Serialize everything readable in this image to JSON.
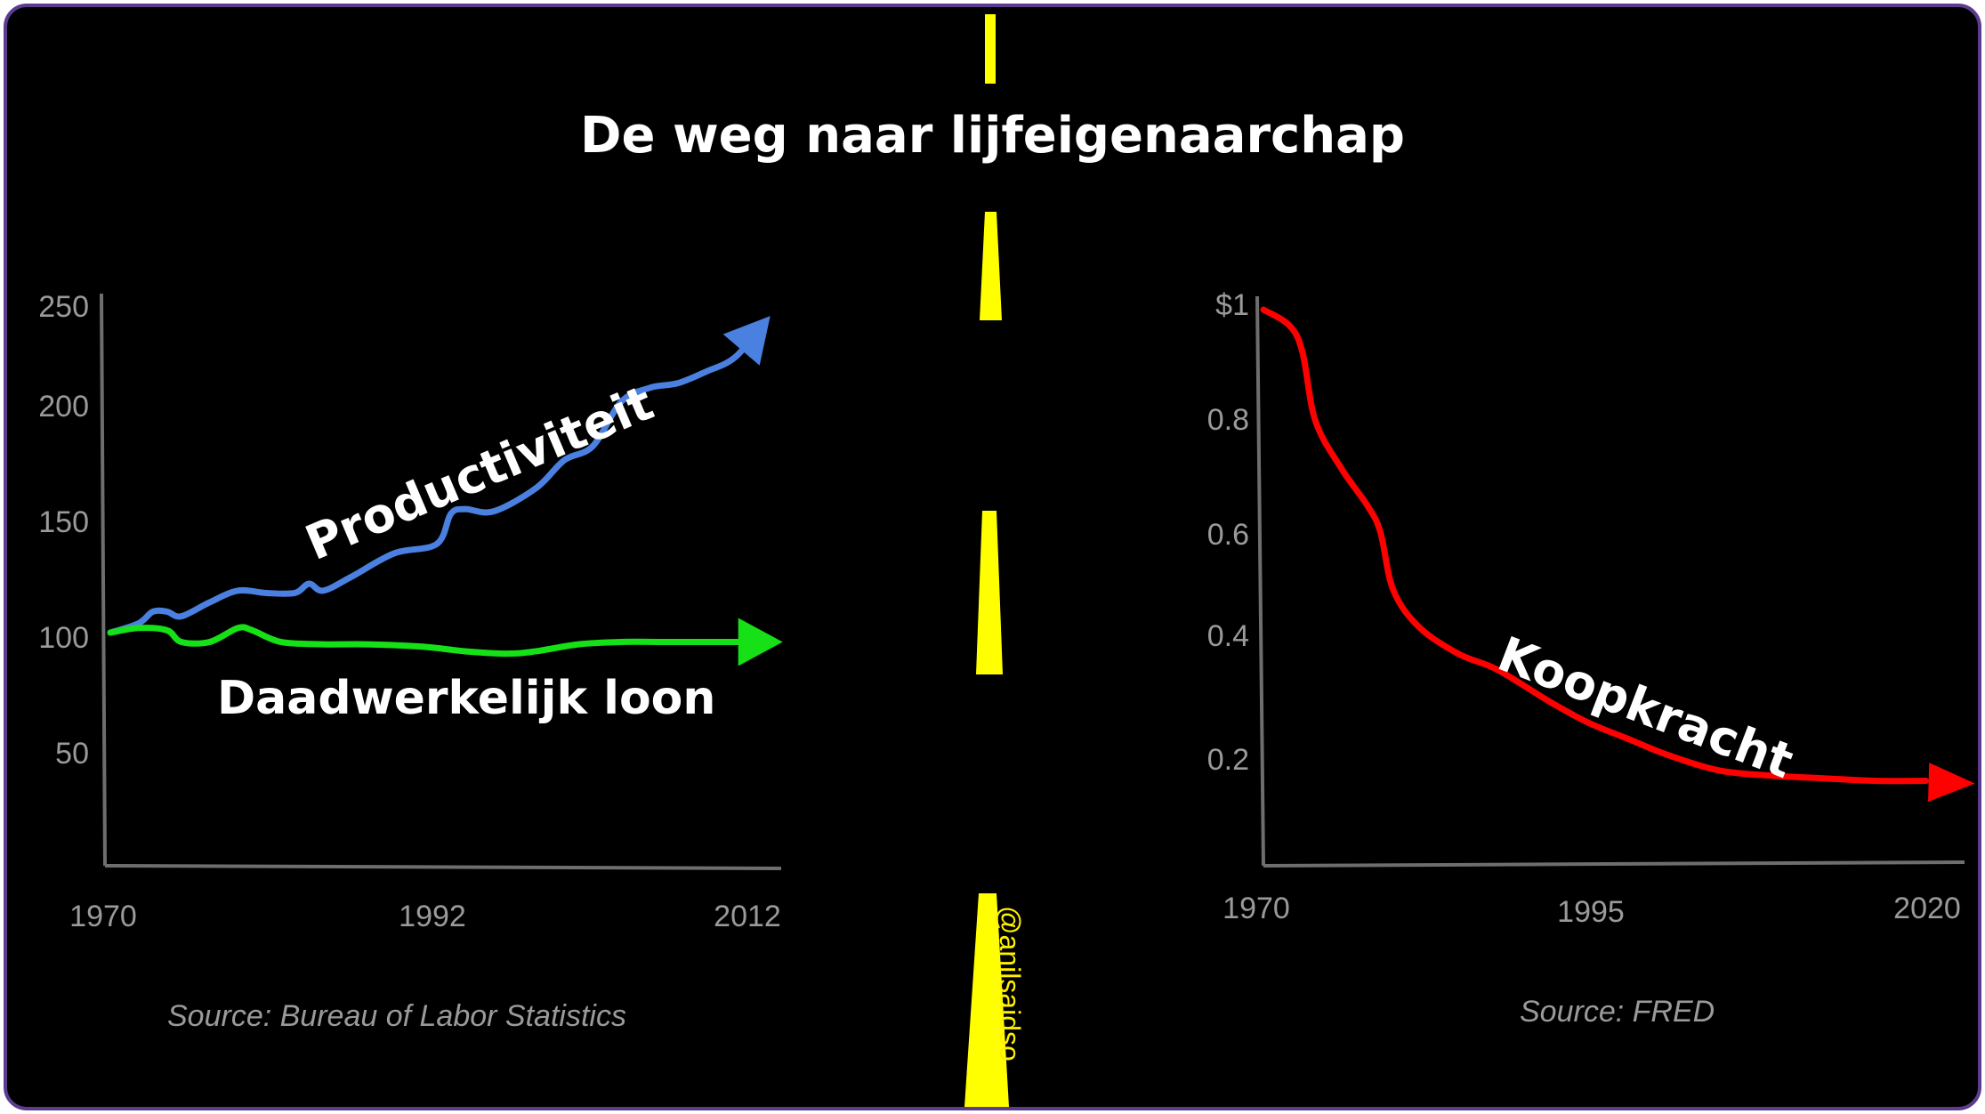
{
  "title": "De weg naar lijfeigenaarchap",
  "credit": "@anilsaidso",
  "colors": {
    "background": "#000000",
    "frame": "#5c3c8e",
    "road_marking": "#ffff00",
    "productivity": "#4a80e0",
    "wages": "#16e016",
    "purchasing_power": "#ff0000",
    "axis": "#6e6e6e",
    "tick_text": "#9a9a9a",
    "label_text": "#ffffff"
  },
  "chart_data": [
    {
      "type": "line",
      "x_tick_labels": [
        "1970",
        "1992",
        "2012"
      ],
      "y_tick_labels": [
        "250",
        "200",
        "150",
        "100",
        "50"
      ],
      "xlim": [
        1970,
        2018
      ],
      "ylim": [
        0,
        250
      ],
      "source": "Source: Bureau of Labor Statistics",
      "series": [
        {
          "name": "Productiviteit",
          "color": "#4a80e0",
          "x": [
            1970,
            1972,
            1973,
            1974,
            1975,
            1977,
            1979,
            1981,
            1983,
            1984,
            1985,
            1987,
            1990,
            1993,
            1994,
            1995,
            1997,
            2000,
            2002,
            2004,
            2006,
            2008,
            2010,
            2012,
            2014,
            2016
          ],
          "y": [
            100,
            104,
            109,
            109,
            107,
            113,
            118,
            117,
            117,
            121,
            118,
            124,
            134,
            138,
            151,
            153,
            152,
            162,
            174,
            180,
            199,
            205,
            207,
            212,
            218,
            232
          ]
        },
        {
          "name": "Daadwerkelijk loon",
          "color": "#16e016",
          "x": [
            1970,
            1972,
            1974,
            1975,
            1977,
            1979,
            1980,
            1982,
            1985,
            1988,
            1992,
            1995,
            1998,
            2000,
            2003,
            2006,
            2009,
            2012,
            2016
          ],
          "y": [
            100,
            102,
            101,
            96,
            96,
            102,
            101,
            96,
            95,
            95,
            94,
            92,
            91,
            92,
            95,
            96,
            96,
            96,
            96
          ]
        }
      ]
    },
    {
      "type": "line",
      "x_tick_labels": [
        "1970",
        "1995",
        "2020"
      ],
      "y_tick_labels": [
        "$1",
        "0.8",
        "0.6",
        "0.4",
        "0.2"
      ],
      "xlim": [
        1970,
        2028
      ],
      "ylim": [
        0,
        1
      ],
      "source": "Source: FRED",
      "series": [
        {
          "name": "Koopkracht",
          "color": "#ff0000",
          "x": [
            1970,
            1972,
            1973,
            1974,
            1976,
            1978,
            1979,
            1980,
            1982,
            1985,
            1988,
            1992,
            1995,
            1998,
            2001,
            2005,
            2009,
            2013,
            2017,
            2021
          ],
          "y": [
            1.0,
            0.97,
            0.92,
            0.79,
            0.7,
            0.63,
            0.58,
            0.47,
            0.4,
            0.35,
            0.32,
            0.26,
            0.22,
            0.19,
            0.16,
            0.13,
            0.12,
            0.115,
            0.11,
            0.11
          ]
        }
      ]
    }
  ]
}
